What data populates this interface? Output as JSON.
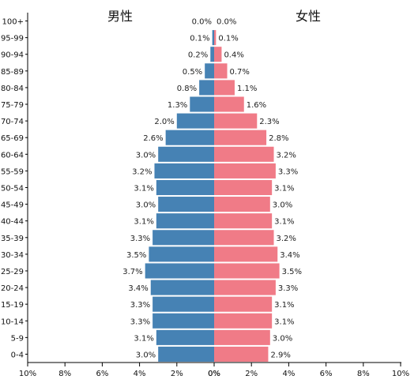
{
  "chart_data": {
    "type": "bar",
    "orientation": "horizontal",
    "male_label": "男性",
    "female_label": "女性",
    "categories": [
      "0-4",
      "5-9",
      "10-14",
      "15-19",
      "20-24",
      "25-29",
      "30-34",
      "35-39",
      "40-44",
      "45-49",
      "50-54",
      "55-59",
      "60-64",
      "65-69",
      "70-74",
      "75-79",
      "80-84",
      "85-89",
      "90-94",
      "95-99",
      "100+"
    ],
    "series": [
      {
        "name": "男性",
        "color": "#4682b4",
        "values": [
          3.0,
          3.1,
          3.3,
          3.3,
          3.4,
          3.7,
          3.5,
          3.3,
          3.1,
          3.0,
          3.1,
          3.2,
          3.0,
          2.6,
          2.0,
          1.3,
          0.8,
          0.5,
          0.2,
          0.1,
          0.0
        ]
      },
      {
        "name": "女性",
        "color": "#f07b87",
        "values": [
          2.9,
          3.0,
          3.1,
          3.1,
          3.3,
          3.5,
          3.4,
          3.2,
          3.1,
          3.0,
          3.1,
          3.3,
          3.2,
          2.8,
          2.3,
          1.6,
          1.1,
          0.7,
          0.4,
          0.1,
          0.0
        ]
      }
    ],
    "x_ticks_left": [
      "10%",
      "8%",
      "6%",
      "4%",
      "2%",
      "0%"
    ],
    "x_ticks_right": [
      "0%",
      "2%",
      "4%",
      "6%",
      "8%",
      "10%"
    ],
    "xlim": [
      0,
      10
    ],
    "value_suffix": "%",
    "grid": false
  }
}
